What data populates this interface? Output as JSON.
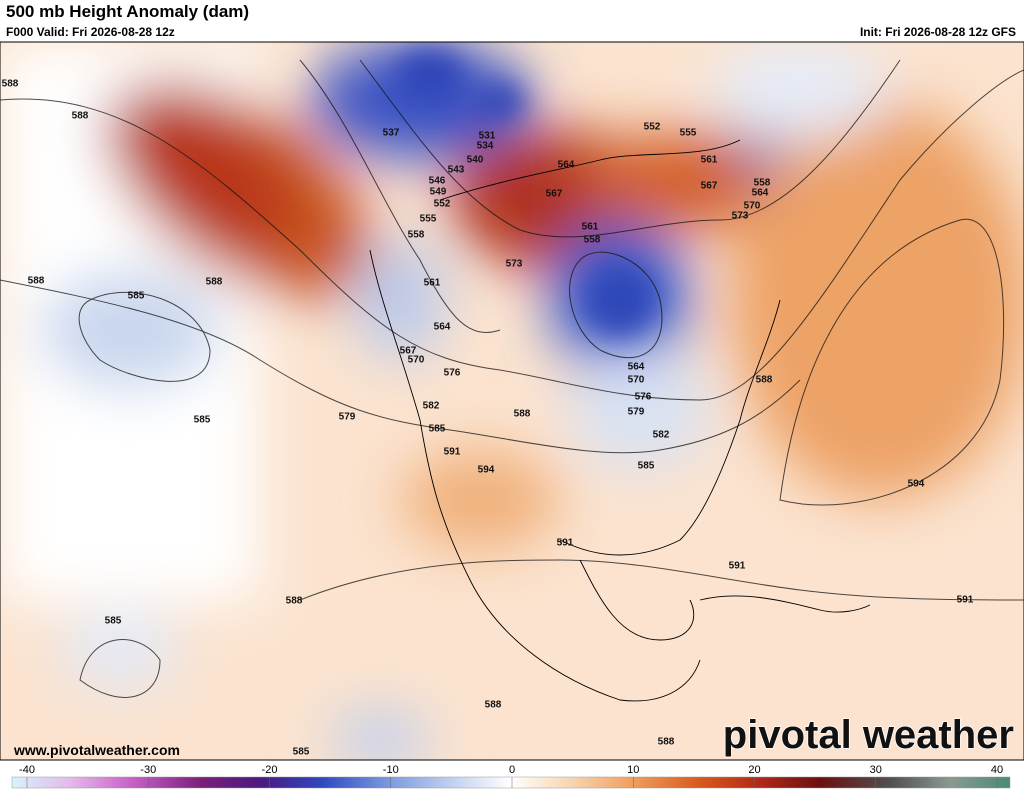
{
  "header": {
    "title": "500 mb Height Anomaly (dam)",
    "valid": "F000 Valid: Fri 2026-08-28 12z",
    "init": "Init: Fri 2026-08-28 12z GFS"
  },
  "map": {
    "contour_labels": [
      "588",
      "588",
      "588",
      "588",
      "585",
      "585",
      "579",
      "537",
      "531",
      "534",
      "540",
      "543",
      "546",
      "549",
      "552",
      "555",
      "558",
      "561",
      "564",
      "567",
      "570",
      "576",
      "582",
      "585",
      "591",
      "594",
      "588",
      "573",
      "561",
      "558",
      "567",
      "564",
      "552",
      "555",
      "561",
      "567",
      "558",
      "564",
      "570",
      "573",
      "564",
      "570",
      "576",
      "579",
      "582",
      "585",
      "588",
      "594",
      "591",
      "591",
      "591",
      "588",
      "585",
      "588",
      "588",
      "585"
    ]
  },
  "watermark": "www.pivotalweather.com",
  "logo": "pivotal weather",
  "colorbar": {
    "range": [
      -40,
      40
    ],
    "ticks": [
      -40,
      -30,
      -20,
      -10,
      0,
      10,
      20,
      30,
      40
    ]
  }
}
